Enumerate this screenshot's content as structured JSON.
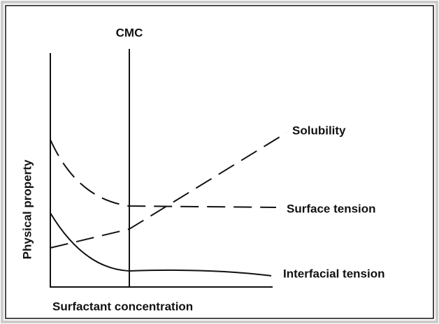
{
  "labels": {
    "cmc": "CMC",
    "solubility": "Solubility",
    "surface_tension": "Surface tension",
    "interfacial_tension": "Interfacial tension"
  },
  "axes": {
    "y_label": "Physical property",
    "x_label": "Surfactant concentration"
  }
}
